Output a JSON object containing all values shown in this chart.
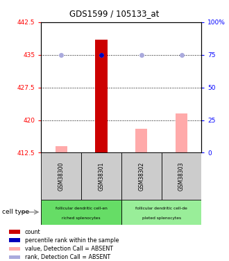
{
  "title": "GDS1599 / 105133_at",
  "samples": [
    "GSM38300",
    "GSM38301",
    "GSM38302",
    "GSM38303"
  ],
  "ylim_left": [
    412.5,
    442.5
  ],
  "yticks_left": [
    412.5,
    420,
    427.5,
    435,
    442.5
  ],
  "ytick_labels_left": [
    "412.5",
    "420",
    "427.5",
    "435",
    "442.5"
  ],
  "ytick_labels_right": [
    "0",
    "25",
    "50",
    "75",
    "100%"
  ],
  "bar_red_values": [
    null,
    438.5,
    null,
    null
  ],
  "bar_pink_values": [
    414.0,
    null,
    418.0,
    421.5
  ],
  "dot_blue_values": [
    null,
    435,
    null,
    null
  ],
  "dot_lightblue_values": [
    435,
    435,
    435,
    435
  ],
  "bar_red_color": "#cc0000",
  "bar_pink_color": "#ffaaaa",
  "dot_blue_color": "#0000bb",
  "dot_lightblue_color": "#aaaadd",
  "baseline": 412.5,
  "cell_type_bg": "#66dd66",
  "sample_box_bg": "#cccccc",
  "legend_items": [
    {
      "label": "count",
      "color": "#cc0000"
    },
    {
      "label": "percentile rank within the sample",
      "color": "#0000bb"
    },
    {
      "label": "value, Detection Call = ABSENT",
      "color": "#ffaaaa"
    },
    {
      "label": "rank, Detection Call = ABSENT",
      "color": "#aaaadd"
    }
  ]
}
